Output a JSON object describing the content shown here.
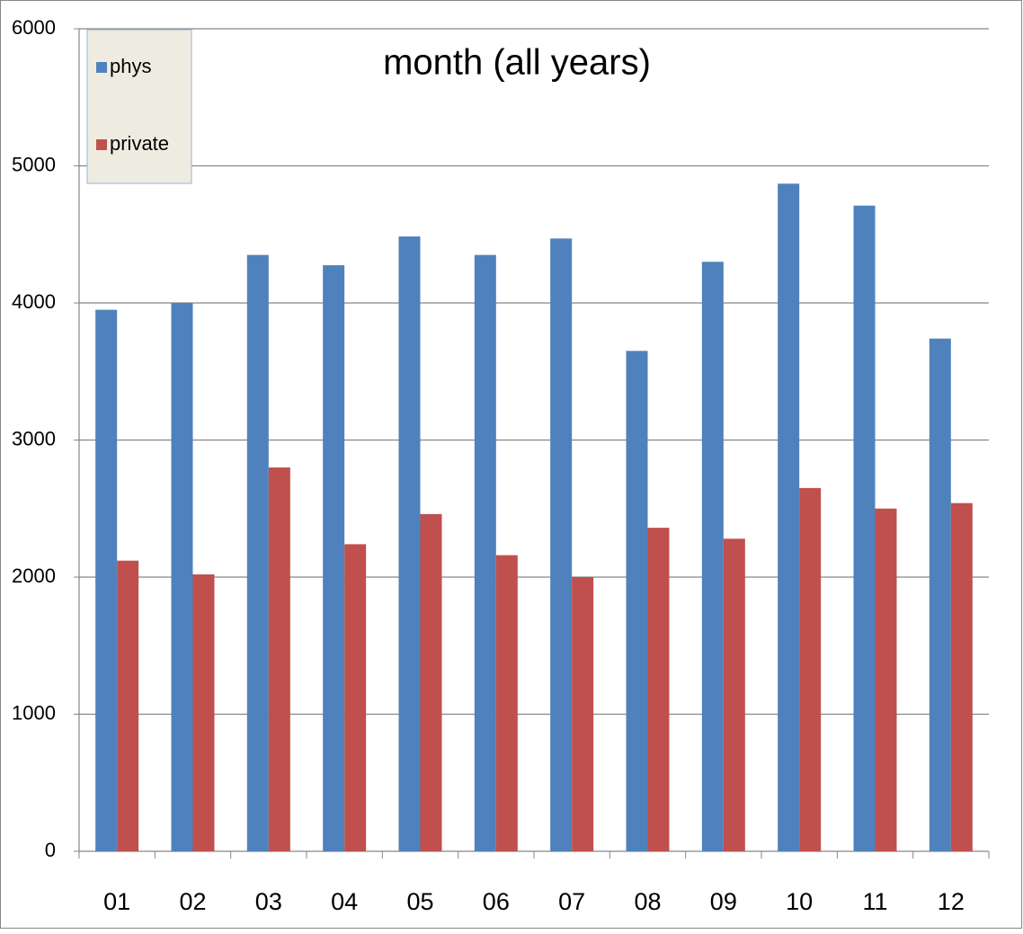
{
  "chart_data": {
    "type": "bar",
    "title": "month (all years)",
    "categories": [
      "01",
      "02",
      "03",
      "04",
      "05",
      "06",
      "07",
      "08",
      "09",
      "10",
      "11",
      "12"
    ],
    "series": [
      {
        "name": "phys",
        "color": "#4f81bd",
        "values": [
          3950,
          4000,
          4350,
          4275,
          4485,
          4350,
          4470,
          3650,
          4300,
          4870,
          4710,
          3740
        ]
      },
      {
        "name": "private",
        "color": "#c0504d",
        "values": [
          2120,
          2020,
          2800,
          2240,
          2460,
          2160,
          2000,
          2360,
          2280,
          2650,
          2500,
          2540
        ]
      }
    ],
    "ylim": [
      0,
      6000
    ],
    "yticks": [
      0,
      1000,
      2000,
      3000,
      4000,
      5000,
      6000
    ],
    "grid": true,
    "legend": "top-left"
  }
}
